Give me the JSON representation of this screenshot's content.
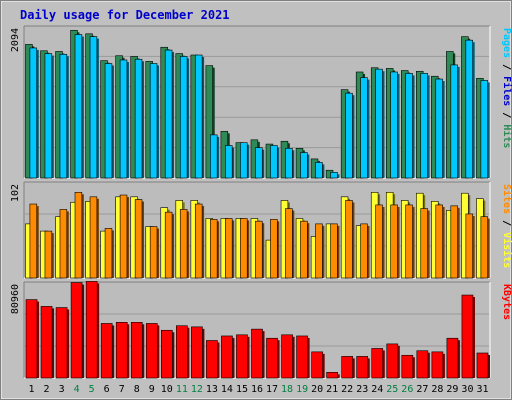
{
  "title": "Daily usage for December 2021",
  "colors": {
    "background": "#c0c0c0",
    "plot_background": "#bcbcbc",
    "title": "#0000cc",
    "hits": "#2e8b57",
    "files": "#00c8ff",
    "pages": "#00c8ff",
    "visits": "#ffff33",
    "sites": "#ff8c00",
    "kbytes": "#ff0000",
    "weekend": "#008040",
    "weekday": "#000000"
  },
  "chart_data": [
    {
      "type": "bar",
      "panel": "top",
      "y_max_label": "2094",
      "ylim": [
        0,
        2094
      ],
      "right_label": [
        "Pages",
        " / ",
        "Files",
        " / ",
        "Hits"
      ],
      "categories": [
        "1",
        "2",
        "3",
        "4",
        "5",
        "6",
        "7",
        "8",
        "9",
        "10",
        "11",
        "12",
        "13",
        "14",
        "15",
        "16",
        "17",
        "18",
        "19",
        "20",
        "21",
        "22",
        "23",
        "24",
        "25",
        "26",
        "27",
        "28",
        "29",
        "30",
        "31"
      ],
      "series": [
        {
          "name": "Hits",
          "values": [
            1890,
            1800,
            1790,
            2090,
            2040,
            1660,
            1730,
            1720,
            1650,
            1850,
            1760,
            1740,
            1590,
            660,
            500,
            540,
            480,
            520,
            420,
            270,
            110,
            1250,
            1500,
            1560,
            1550,
            1520,
            1510,
            1440,
            1790,
            2000,
            1410
          ]
        },
        {
          "name": "Files",
          "values": [
            1840,
            1760,
            1750,
            2030,
            2000,
            1620,
            1670,
            1680,
            1620,
            1810,
            1720,
            1740,
            610,
            460,
            500,
            430,
            460,
            420,
            360,
            220,
            80,
            1200,
            1420,
            1540,
            1500,
            1480,
            1480,
            1400,
            1600,
            1950,
            1380
          ]
        }
      ]
    },
    {
      "type": "bar",
      "panel": "middle",
      "y_max_label": "102",
      "ylim": [
        0,
        102
      ],
      "right_label": [
        "Sites",
        " / ",
        "Visits"
      ],
      "categories": [
        "1",
        "2",
        "3",
        "4",
        "5",
        "6",
        "7",
        "8",
        "9",
        "10",
        "11",
        "12",
        "13",
        "14",
        "15",
        "16",
        "17",
        "18",
        "19",
        "20",
        "21",
        "22",
        "23",
        "24",
        "25",
        "26",
        "27",
        "28",
        "29",
        "30",
        "31"
      ],
      "series": [
        {
          "name": "Visits",
          "values": [
            60,
            52,
            68,
            84,
            85,
            52,
            90,
            90,
            57,
            78,
            86,
            86,
            66,
            66,
            66,
            66,
            42,
            86,
            66,
            46,
            60,
            90,
            58,
            95,
            95,
            86,
            94,
            85,
            75,
            94,
            88
          ]
        },
        {
          "name": "Sites",
          "values": [
            82,
            52,
            76,
            95,
            90,
            55,
            92,
            87,
            57,
            73,
            76,
            82,
            65,
            66,
            66,
            63,
            65,
            77,
            63,
            60,
            60,
            86,
            60,
            81,
            81,
            81,
            77,
            81,
            80,
            71,
            68
          ]
        }
      ]
    },
    {
      "type": "bar",
      "panel": "bottom",
      "y_max_label": "80960",
      "ylim": [
        0,
        80960
      ],
      "right_label": [
        "KBytes"
      ],
      "categories": [
        "1",
        "2",
        "3",
        "4",
        "5",
        "6",
        "7",
        "8",
        "9",
        "10",
        "11",
        "12",
        "13",
        "14",
        "15",
        "16",
        "17",
        "18",
        "19",
        "20",
        "21",
        "22",
        "23",
        "24",
        "25",
        "26",
        "27",
        "28",
        "29",
        "30",
        "31"
      ],
      "series": [
        {
          "name": "KBytes",
          "values": [
            69000,
            63000,
            62000,
            84000,
            85000,
            48000,
            49000,
            49000,
            48000,
            42000,
            46000,
            45000,
            33000,
            37000,
            38000,
            43000,
            35000,
            38000,
            37000,
            23000,
            5000,
            19000,
            19000,
            26000,
            30000,
            20000,
            24000,
            23000,
            35000,
            73000,
            22000
          ]
        }
      ]
    }
  ],
  "x_axis": {
    "labels": [
      "1",
      "2",
      "3",
      "4",
      "5",
      "6",
      "7",
      "8",
      "9",
      "10",
      "11",
      "12",
      "13",
      "14",
      "15",
      "16",
      "17",
      "18",
      "19",
      "20",
      "21",
      "22",
      "23",
      "24",
      "25",
      "26",
      "27",
      "28",
      "29",
      "30",
      "31"
    ],
    "weekend_days": [
      "4",
      "5",
      "11",
      "12",
      "18",
      "19",
      "25",
      "26"
    ]
  }
}
